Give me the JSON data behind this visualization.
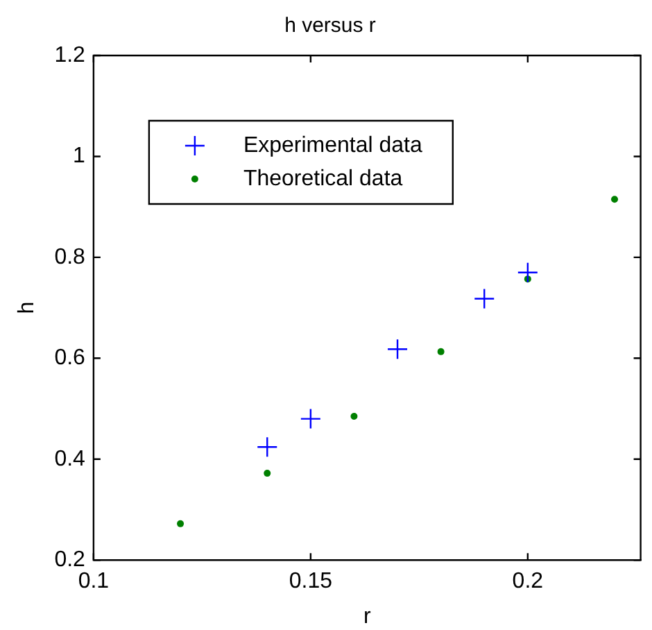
{
  "chart_data": {
    "type": "scatter",
    "title": "h versus r",
    "xlabel": "r",
    "ylabel": "h",
    "xlim": [
      0.1,
      0.226
    ],
    "xticks": [
      0.1,
      0.15,
      0.2
    ],
    "ylim": [
      0.2,
      1.2
    ],
    "yticks": [
      0.2,
      0.4,
      0.6,
      0.8,
      1,
      1.2
    ],
    "grid": false,
    "legend": "top left",
    "series": [
      {
        "name": "Experimental data",
        "color": "#0000ff",
        "marker": "cross",
        "x": [
          0.14,
          0.15,
          0.17,
          0.19,
          0.2
        ],
        "values": [
          0.424,
          0.48,
          0.618,
          0.718,
          0.77
        ]
      },
      {
        "name": "Theoretical data",
        "color": "#008000",
        "marker": "circle",
        "x": [
          0.12,
          0.14,
          0.16,
          0.18,
          0.2,
          0.22
        ],
        "values": [
          0.272,
          0.372,
          0.485,
          0.613,
          0.757,
          0.915
        ]
      }
    ]
  }
}
